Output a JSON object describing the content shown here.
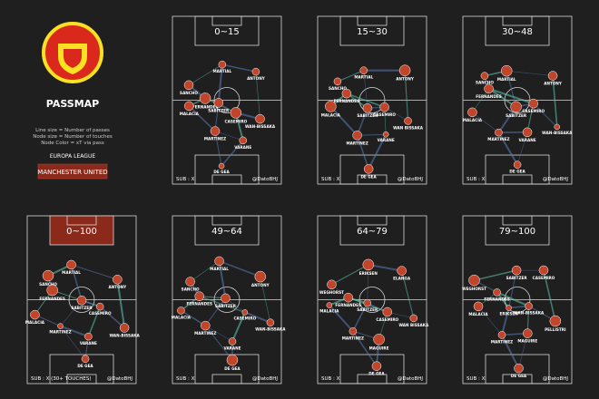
{
  "sidebar": {
    "title": "PASSMAP",
    "legend": [
      "Line size = Number of passes",
      "Node size = Number of touches",
      "Node Color = xT via pass"
    ],
    "competition": "EUROPA LEAGUE",
    "team": "MANCHESTER UNITED"
  },
  "panels": [
    {
      "title": "0~15",
      "sub": "SUB : X",
      "credit": "@DatoBHJ",
      "players": [
        "SANCHO",
        "MARTIAL",
        "ANTONY",
        "FERNANDES",
        "SABITZER",
        "MALACIA",
        "CASEMIRO",
        "MARTINEZ",
        "WAN-BISSAKA",
        "VARANE",
        "DE GEA"
      ]
    },
    {
      "title": "15~30",
      "sub": "SUB : X",
      "credit": "@DatoBHJ",
      "players": [
        "SANCHO",
        "MARTIAL",
        "ANTONY",
        "FERNANDES",
        "SABITZER",
        "MALACIA",
        "CASEMIRO",
        "MARTINEZ",
        "WAN BISSAKA",
        "VARANE",
        "DE GEA"
      ]
    },
    {
      "title": "30~48",
      "sub": "SUB : X",
      "credit": "@DatoBHJ",
      "players": [
        "SANCHO",
        "MARTIAL",
        "ANTONY",
        "FERNANDES",
        "SABITZER",
        "MALACIA",
        "CASEMIRO",
        "MARTINEZ",
        "WAN-BISSAKA",
        "VARANE",
        "DE GEA"
      ]
    },
    {
      "title": "0~100",
      "sub": "SUB : X (30+ TOUCHES)",
      "credit": "@DatoBHJ",
      "players": [
        "SANCHO",
        "MARTIAL",
        "ANTONY",
        "FERNANDES",
        "SABITZER",
        "MALACIA",
        "CASEMIRO",
        "MARTINEZ",
        "WAN-BISSAKA",
        "VARANE",
        "DE GEA"
      ]
    },
    {
      "title": "49~64",
      "sub": "SUB : X",
      "credit": "@DatoBHJ",
      "players": [
        "SANCHO",
        "MARTIAL",
        "ANTONY",
        "FERNANDES",
        "SABITZER",
        "MALACIA",
        "CASEMIRO",
        "MARTINEZ",
        "WAN-BISSAKA",
        "VARANE",
        "DE GEA"
      ]
    },
    {
      "title": "64~79",
      "sub": "SUB : X",
      "credit": "@DatoBHJ",
      "players": [
        "WEGHORST",
        "ERIKSEN",
        "ELANGA",
        "FERNANDES",
        "SABITZER",
        "MALACIA",
        "CASEMIRO",
        "MARTINEZ",
        "WAN BISSAKA",
        "MAGUIRE",
        "DE GEA"
      ]
    },
    {
      "title": "79~100",
      "sub": "SUB : X",
      "credit": "@DatoBHJ",
      "players": [
        "WEGHORST",
        "SABITZER",
        "CASEMIRO",
        "FERNANDES",
        "ERIKSEN",
        "MALACIA",
        "WAN-BISSAKA",
        "MARTINEZ",
        "PELLISTRI",
        "MAGUIRE",
        "DE GEA"
      ]
    }
  ]
}
